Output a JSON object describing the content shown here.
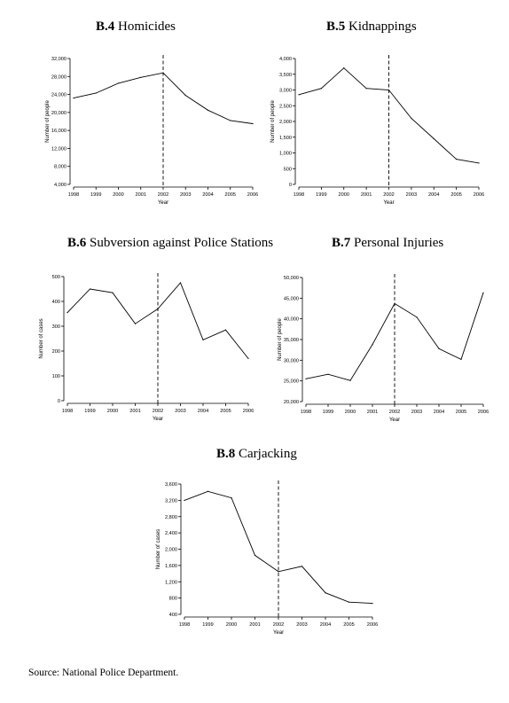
{
  "source_note": "Source: National Police Department.",
  "chart_data": [
    {
      "id": "b4",
      "type": "line",
      "title_number": "B.4",
      "title_text": "Homicides",
      "xlabel": "Year",
      "ylabel": "Number of people",
      "x": [
        "1998",
        "1999",
        "2000",
        "2001",
        "2002",
        "2003",
        "2004",
        "2005",
        "2006"
      ],
      "y": [
        23200,
        24300,
        26500,
        27800,
        28800,
        23800,
        20500,
        18200,
        17500
      ],
      "yticks": [
        4000,
        8000,
        12000,
        16000,
        20000,
        24000,
        28000,
        32000
      ],
      "ytick_labels": [
        "4,000",
        "8,000",
        "12,000",
        "16,000",
        "20,000",
        "24,000",
        "28,000",
        "32,000"
      ],
      "ylim": [
        4000,
        32000
      ],
      "marker_year": "2002",
      "marker_style": "dashed"
    },
    {
      "id": "b5",
      "type": "line",
      "title_number": "B.5",
      "title_text": "Kidnappings",
      "xlabel": "Year",
      "ylabel": "Number of people",
      "x": [
        "1998",
        "1999",
        "2000",
        "2001",
        "2002",
        "2003",
        "2004",
        "2005",
        "2006"
      ],
      "y": [
        2850,
        3050,
        3700,
        3050,
        3000,
        2100,
        1450,
        800,
        680
      ],
      "yticks": [
        0,
        500,
        1000,
        1500,
        2000,
        2500,
        3000,
        3500,
        4000
      ],
      "ytick_labels": [
        "0",
        "500",
        "1,000",
        "1,500",
        "2,000",
        "2,500",
        "3,000",
        "3,500",
        "4,000"
      ],
      "ylim": [
        0,
        4000
      ],
      "marker_year": "2002",
      "marker_style": "dashed"
    },
    {
      "id": "b6",
      "type": "line",
      "title_number": "B.6",
      "title_text": "Subversion against Police Stations",
      "xlabel": "Year",
      "ylabel": "Number of cases",
      "x": [
        "1998",
        "1999",
        "2000",
        "2001",
        "2002",
        "2003",
        "2004",
        "2005",
        "2006"
      ],
      "y": [
        355,
        450,
        435,
        310,
        370,
        475,
        245,
        285,
        170
      ],
      "yticks": [
        0,
        100,
        200,
        300,
        400,
        500
      ],
      "ytick_labels": [
        "0",
        "100",
        "200",
        "300",
        "400",
        "500"
      ],
      "ylim": [
        0,
        500
      ],
      "marker_year": "2002",
      "marker_style": "dashed"
    },
    {
      "id": "b7",
      "type": "line",
      "title_number": "B.7",
      "title_text": "Personal Injuries",
      "xlabel": "Year",
      "ylabel": "Number of people",
      "x": [
        "1998",
        "1999",
        "2000",
        "2001",
        "2002",
        "2003",
        "2004",
        "2005",
        "2006"
      ],
      "y": [
        25500,
        26600,
        25100,
        33800,
        43700,
        40400,
        32800,
        30200,
        46300
      ],
      "yticks": [
        20000,
        25000,
        30000,
        35000,
        40000,
        45000,
        50000
      ],
      "ytick_labels": [
        "20,000",
        "25,000",
        "30,000",
        "35,000",
        "40,000",
        "45,000",
        "50,000"
      ],
      "ylim": [
        20000,
        50000
      ],
      "marker_year": "2002",
      "marker_style": "dashed"
    },
    {
      "id": "b8",
      "type": "line",
      "title_number": "B.8",
      "title_text": "Carjacking",
      "xlabel": "Year",
      "ylabel": "Number of cases",
      "x": [
        "1998",
        "1999",
        "2000",
        "2001",
        "2002",
        "2003",
        "2004",
        "2005",
        "2006"
      ],
      "y": [
        3200,
        3420,
        3260,
        1850,
        1450,
        1580,
        930,
        700,
        670
      ],
      "yticks": [
        400,
        800,
        1200,
        1600,
        2000,
        2400,
        2800,
        3200,
        3600
      ],
      "ytick_labels": [
        "400",
        "800",
        "1,200",
        "1,600",
        "2,000",
        "2,400",
        "2,800",
        "3,200",
        "3,600"
      ],
      "ylim": [
        400,
        3600
      ],
      "marker_year": "2002",
      "marker_style": "dashed"
    }
  ]
}
